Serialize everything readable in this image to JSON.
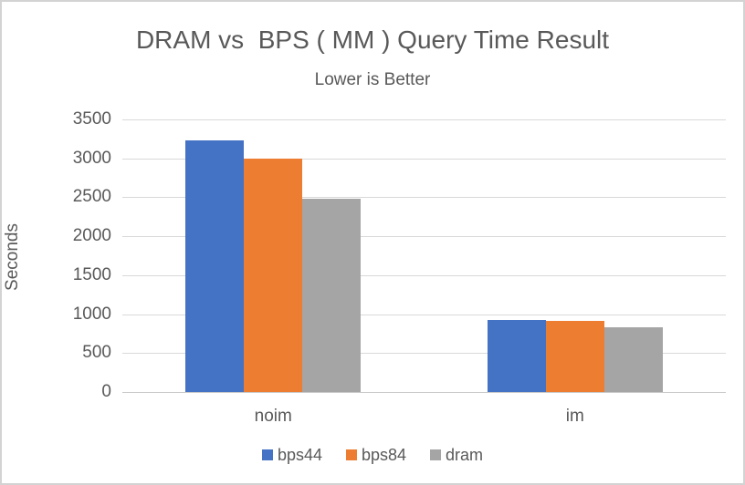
{
  "window": {
    "background": "#ffffff",
    "border_color": "#d3d3d3"
  },
  "chart_data": {
    "type": "bar",
    "title": "DRAM vs  BPS ( MM ) Query Time Result",
    "subtitle": "Lower is Better",
    "ylabel": "Seconds",
    "xlabel": "",
    "categories": [
      "noim",
      "im"
    ],
    "series": [
      {
        "name": "bps44",
        "color": "#4472C4",
        "values": [
          3230,
          920
        ]
      },
      {
        "name": "bps84",
        "color": "#ED7D31",
        "values": [
          3000,
          910
        ]
      },
      {
        "name": "dram",
        "color": "#A5A5A5",
        "values": [
          2480,
          830
        ]
      }
    ],
    "ylim": [
      0,
      3500
    ],
    "ytick_step": 500,
    "yticks": [
      0,
      500,
      1000,
      1500,
      2000,
      2500,
      3000,
      3500
    ],
    "grid": true,
    "legend_position": "bottom",
    "text_color": "#595959",
    "gridline_color": "#d9d9d9",
    "axis_line_color": "#c9c9c9"
  }
}
